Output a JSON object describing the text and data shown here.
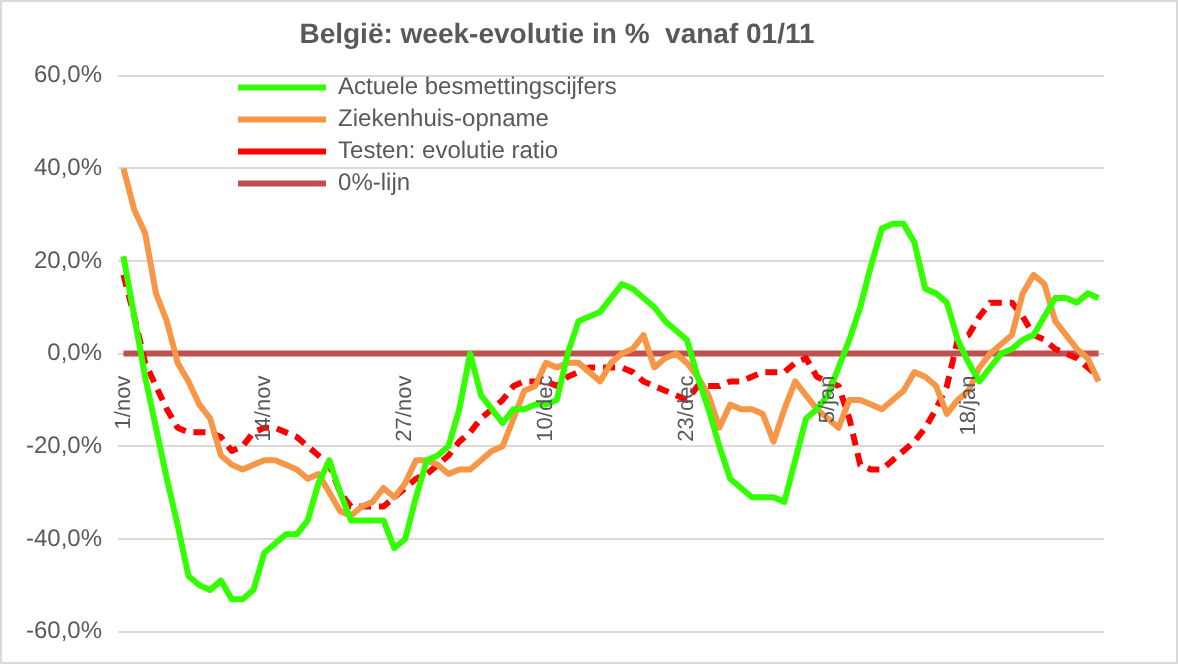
{
  "chart_data": {
    "type": "line",
    "title": "België: week-evolutie in %  vanaf 01/11",
    "categories": [
      "1/nov",
      null,
      null,
      null,
      null,
      null,
      null,
      null,
      null,
      null,
      null,
      null,
      null,
      "14/nov",
      null,
      null,
      null,
      null,
      null,
      null,
      null,
      null,
      null,
      null,
      null,
      null,
      "27/nov",
      null,
      null,
      null,
      null,
      null,
      null,
      null,
      null,
      null,
      null,
      null,
      null,
      "10/dec",
      null,
      null,
      null,
      null,
      null,
      null,
      null,
      null,
      null,
      null,
      null,
      null,
      "23/dec",
      null,
      null,
      null,
      null,
      null,
      null,
      null,
      null,
      null,
      null,
      null,
      null,
      "5/jan",
      null,
      null,
      null,
      null,
      null,
      null,
      null,
      null,
      null,
      null,
      null,
      null,
      "18/jan",
      null,
      null,
      null,
      null,
      null,
      null,
      null,
      null,
      null,
      null,
      null,
      null
    ],
    "ylim": [
      -60,
      60
    ],
    "yticks": [
      {
        "value": -60,
        "label": "-60,0%"
      },
      {
        "value": -40,
        "label": "-40,0%"
      },
      {
        "value": -20,
        "label": "-20,0%"
      },
      {
        "value": 0,
        "label": "0,0%"
      },
      {
        "value": 20,
        "label": "20,0%"
      },
      {
        "value": 40,
        "label": "40,0%"
      },
      {
        "value": 60,
        "label": "60,0%"
      }
    ],
    "grid": "y",
    "legend": "top",
    "marker": "none",
    "series": [
      {
        "name": "Actuele besmettingscijfers",
        "color": "#33ff00",
        "values": [
          21,
          8,
          -5,
          -16,
          -27,
          -37,
          -48,
          -50,
          -51,
          -49,
          -53,
          -53,
          -51,
          -43,
          -41,
          -39,
          -39,
          -36,
          -28,
          -23,
          -30,
          -36,
          -36,
          -36,
          -36,
          -42,
          -40,
          -31,
          -23,
          -22,
          -20,
          -12,
          0,
          -9,
          -12,
          -15,
          -12,
          -12,
          -11,
          -11,
          -10,
          0,
          7,
          8,
          9,
          12,
          15,
          14,
          12,
          10,
          7,
          5,
          3,
          -5,
          -12,
          -20,
          -27,
          -29,
          -31,
          -31,
          -31,
          -32,
          -23,
          -14,
          -12,
          -9,
          -3,
          3,
          10,
          19,
          27,
          28,
          28,
          24,
          14,
          13,
          11,
          3,
          -2,
          -6,
          -3,
          0,
          1,
          3,
          4,
          8,
          12,
          12,
          11,
          13,
          12
        ]
      },
      {
        "name": "Ziekenhuis-opname",
        "color": "#f79646",
        "values": [
          40,
          31,
          26,
          13,
          7,
          -2,
          -6,
          -11,
          -14,
          -22,
          -24,
          -25,
          -24,
          -23,
          -23,
          -24,
          -25,
          -27,
          -26,
          -30,
          -34,
          -35,
          -33,
          -32,
          -29,
          -31,
          -28,
          -23,
          -23,
          -24,
          -26,
          -25,
          -25,
          -23,
          -21,
          -20,
          -14,
          -8,
          -7,
          -2,
          -3,
          -2,
          -2,
          -4,
          -6,
          -2,
          0,
          1,
          4,
          -3,
          -1,
          0,
          -2,
          -5,
          -9,
          -16,
          -11,
          -12,
          -12,
          -13,
          -19,
          -12,
          -6,
          -9,
          -12,
          -14,
          -16,
          -10,
          -10,
          -11,
          -12,
          -10,
          -8,
          -4,
          -5,
          -7,
          -13,
          -10,
          -8,
          -3,
          0,
          2,
          4,
          13,
          17,
          15,
          7,
          4,
          1,
          -1,
          -6
        ]
      },
      {
        "name": "Testen: evolutie ratio",
        "color": "#ff0000",
        "line_style": "dashed",
        "values": [
          17,
          8,
          -2,
          -7,
          -12,
          -16,
          -17,
          -17,
          -17,
          -18,
          -21,
          -20,
          -17,
          -16,
          -16,
          -17,
          -18,
          -20,
          -22,
          -24,
          -30,
          -33,
          -33,
          -33,
          -33,
          -31,
          -29,
          -27,
          -26,
          -24,
          -22,
          -19,
          -17,
          -14,
          -12,
          -10,
          -7,
          -6,
          -6,
          -6,
          -7,
          -5,
          -4,
          -3,
          -3,
          -3,
          -3,
          -4,
          -6,
          -7,
          -8,
          -9,
          -10,
          -7,
          -7,
          -7,
          -6,
          -6,
          -5,
          -4,
          -4,
          -4,
          -2,
          -1,
          -5,
          -6,
          -7,
          -14,
          -24,
          -25,
          -25,
          -23,
          -21,
          -19,
          -16,
          -12,
          -7,
          3,
          4,
          8,
          11,
          11,
          11,
          8,
          4,
          3,
          1,
          0,
          -1,
          -3,
          -5
        ]
      },
      {
        "name": "0%-lijn",
        "color": "#c0504d",
        "values": [
          0,
          0,
          0,
          0,
          0,
          0,
          0,
          0,
          0,
          0,
          0,
          0,
          0,
          0,
          0,
          0,
          0,
          0,
          0,
          0,
          0,
          0,
          0,
          0,
          0,
          0,
          0,
          0,
          0,
          0,
          0,
          0,
          0,
          0,
          0,
          0,
          0,
          0,
          0,
          0,
          0,
          0,
          0,
          0,
          0,
          0,
          0,
          0,
          0,
          0,
          0,
          0,
          0,
          0,
          0,
          0,
          0,
          0,
          0,
          0,
          0,
          0,
          0,
          0,
          0,
          0,
          0,
          0,
          0,
          0,
          0,
          0,
          0,
          0,
          0,
          0,
          0,
          0,
          0,
          0,
          0,
          0,
          0,
          0,
          0,
          0,
          0,
          0,
          0,
          0,
          0
        ]
      }
    ]
  }
}
